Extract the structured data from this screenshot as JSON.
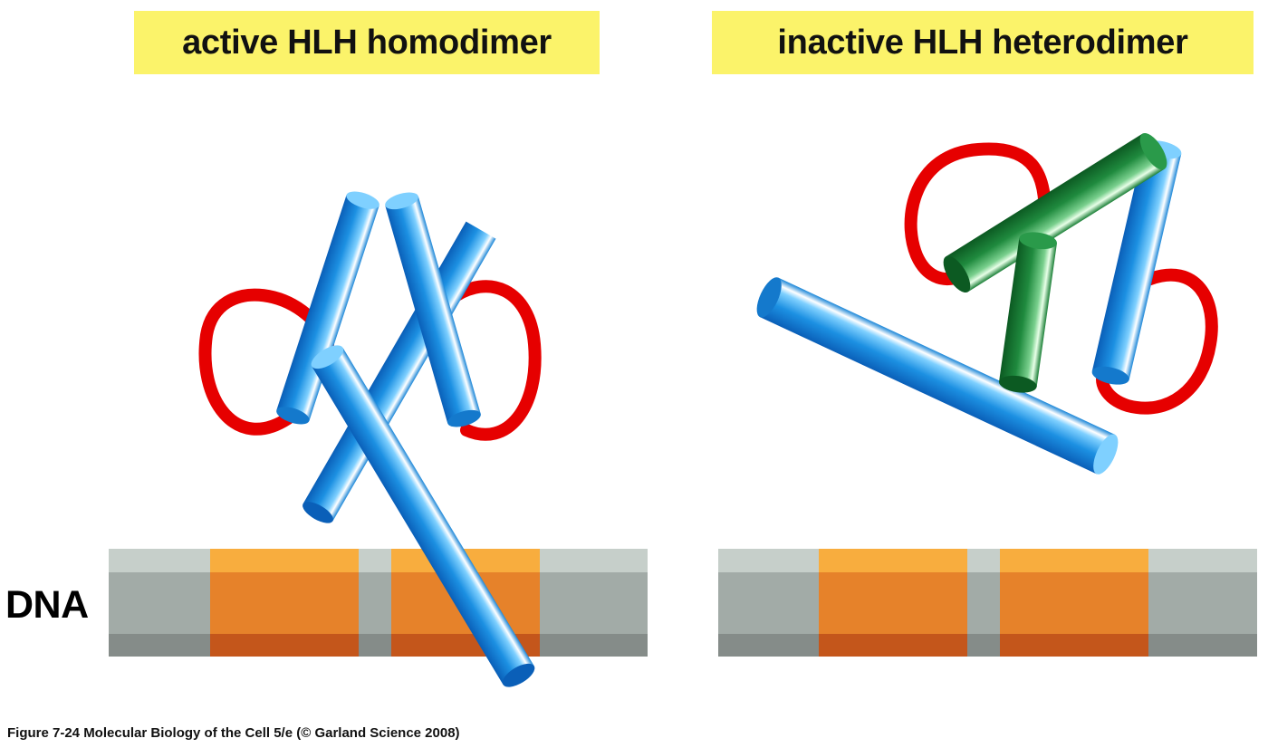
{
  "titles": {
    "left": "active HLH homodimer",
    "right": "inactive HLH heterodimer"
  },
  "dna_label": "DNA",
  "caption": "Figure 7-24  Molecular Biology of the Cell 5/e (© Garland Science 2008)",
  "colors": {
    "title_background": "#fbf36a",
    "helix_blue": "#1a8fe0",
    "helix_green": "#1e8a3c",
    "loop_red": "#e60000",
    "dna_gray": "#a2aba7",
    "dna_orange": "#e6822a"
  }
}
